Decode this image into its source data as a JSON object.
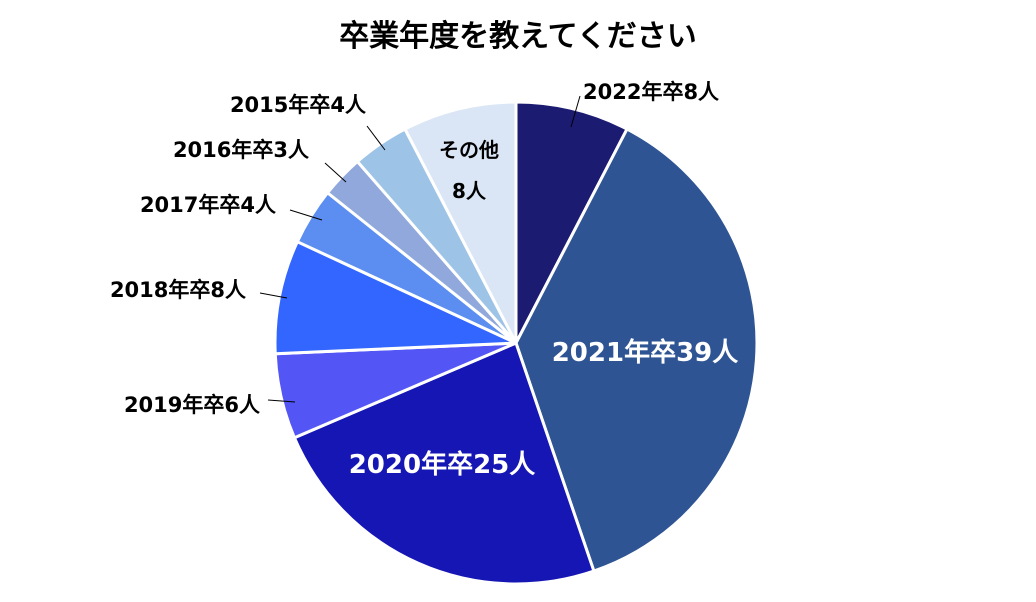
{
  "chart_data": {
    "type": "pie",
    "title": "卒業年度を教えてください",
    "start": "12 o'clock, clockwise",
    "slices": [
      {
        "label": "2022年卒8人",
        "value": 8,
        "color": "#1c1b72"
      },
      {
        "label": "2021年卒39人",
        "value": 39,
        "color": "#2e5493"
      },
      {
        "label": "2020年卒25人",
        "value": 25,
        "color": "#1616b5"
      },
      {
        "label": "2019年卒6人",
        "value": 6,
        "color": "#5355f4"
      },
      {
        "label": "2018年卒8人",
        "value": 8,
        "color": "#3366ff"
      },
      {
        "label": "2017年卒4人",
        "value": 4,
        "color": "#5b8ef0"
      },
      {
        "label": "2016年卒3人",
        "value": 3,
        "color": "#90a8dc"
      },
      {
        "label": "2015年卒4人",
        "value": 4,
        "color": "#9dc3e6"
      },
      {
        "label": "その他",
        "label2": "8人",
        "value": 8,
        "color": "#dae6f5"
      }
    ]
  }
}
